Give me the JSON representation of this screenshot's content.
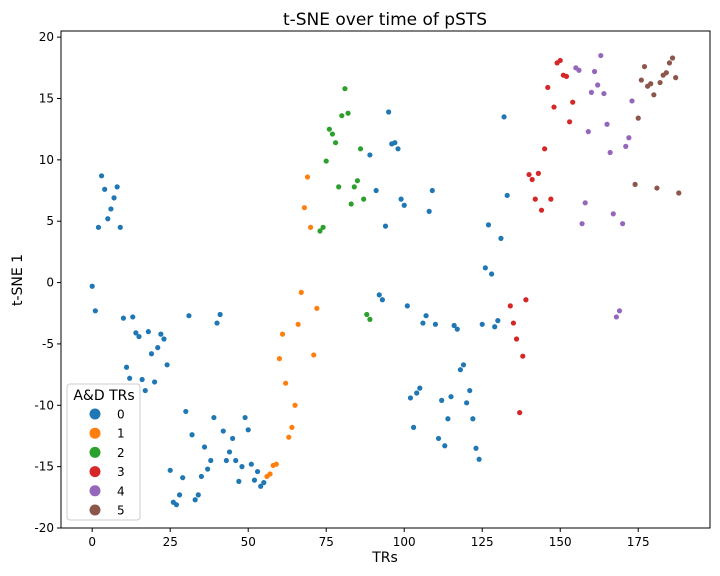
{
  "chart_data": {
    "type": "scatter",
    "title": "t-SNE over time of pSTS",
    "xlabel": "TRs",
    "ylabel": "t-SNE 1",
    "xlim": [
      -10,
      198
    ],
    "ylim": [
      -20,
      20.5
    ],
    "xticks": [
      0,
      25,
      50,
      75,
      100,
      125,
      150,
      175
    ],
    "yticks": [
      -20,
      -15,
      -10,
      -5,
      0,
      5,
      10,
      15,
      20
    ],
    "grid": false,
    "legend": {
      "title": "A&D TRs",
      "placement": "lower-left",
      "entries": [
        "0",
        "1",
        "2",
        "3",
        "4",
        "5"
      ]
    },
    "colors": [
      "#1f77b4",
      "#ff7f0e",
      "#2ca02c",
      "#d62728",
      "#9467bd",
      "#8c564b"
    ],
    "series": [
      {
        "name": "0",
        "color": "#1f77b4",
        "points": [
          [
            0,
            -0.3
          ],
          [
            1,
            -2.3
          ],
          [
            2,
            4.5
          ],
          [
            3,
            8.7
          ],
          [
            4,
            7.6
          ],
          [
            5,
            5.2
          ],
          [
            6,
            6.0
          ],
          [
            7,
            6.9
          ],
          [
            8,
            7.8
          ],
          [
            9,
            4.5
          ],
          [
            10,
            -2.9
          ],
          [
            11,
            -6.9
          ],
          [
            12,
            -7.8
          ],
          [
            13,
            -2.8
          ],
          [
            14,
            -4.1
          ],
          [
            15,
            -4.4
          ],
          [
            16,
            -7.9
          ],
          [
            17,
            -8.8
          ],
          [
            18,
            -4.0
          ],
          [
            19,
            -5.8
          ],
          [
            20,
            -8.1
          ],
          [
            21,
            -5.3
          ],
          [
            22,
            -4.2
          ],
          [
            23,
            -4.6
          ],
          [
            24,
            -6.7
          ],
          [
            25,
            -15.3
          ],
          [
            26,
            -17.9
          ],
          [
            27,
            -18.1
          ],
          [
            28,
            -17.3
          ],
          [
            29,
            -15.9
          ],
          [
            30,
            -10.5
          ],
          [
            31,
            -2.7
          ],
          [
            32,
            -12.4
          ],
          [
            33,
            -17.7
          ],
          [
            34,
            -17.3
          ],
          [
            35,
            -15.8
          ],
          [
            36,
            -13.4
          ],
          [
            37,
            -15.2
          ],
          [
            38,
            -14.5
          ],
          [
            39,
            -11.0
          ],
          [
            40,
            -3.3
          ],
          [
            41,
            -2.6
          ],
          [
            42,
            -12.1
          ],
          [
            43,
            -14.5
          ],
          [
            44,
            -13.8
          ],
          [
            45,
            -12.7
          ],
          [
            46,
            -14.5
          ],
          [
            47,
            -16.2
          ],
          [
            48,
            -15.0
          ],
          [
            49,
            -11.0
          ],
          [
            50,
            -12.0
          ],
          [
            51,
            -14.8
          ],
          [
            52,
            -16.1
          ],
          [
            53,
            -15.4
          ],
          [
            54,
            -16.6
          ],
          [
            55,
            -16.3
          ],
          [
            89,
            10.4
          ],
          [
            91,
            7.5
          ],
          [
            92,
            -1.0
          ],
          [
            93,
            -1.4
          ],
          [
            94,
            4.6
          ],
          [
            95,
            13.9
          ],
          [
            96,
            11.3
          ],
          [
            97,
            11.4
          ],
          [
            98,
            10.9
          ],
          [
            99,
            6.8
          ],
          [
            100,
            6.3
          ],
          [
            101,
            -1.9
          ],
          [
            102,
            -9.4
          ],
          [
            103,
            -11.8
          ],
          [
            104,
            -9.0
          ],
          [
            105,
            -8.6
          ],
          [
            106,
            -3.3
          ],
          [
            107,
            -2.7
          ],
          [
            108,
            5.8
          ],
          [
            109,
            7.5
          ],
          [
            110,
            -3.4
          ],
          [
            111,
            -12.7
          ],
          [
            112,
            -9.6
          ],
          [
            113,
            -13.3
          ],
          [
            114,
            -11.1
          ],
          [
            115,
            -9.3
          ],
          [
            116,
            -3.5
          ],
          [
            117,
            -3.8
          ],
          [
            118,
            -7.1
          ],
          [
            119,
            -6.7
          ],
          [
            120,
            -9.8
          ],
          [
            121,
            -8.8
          ],
          [
            122,
            -11.1
          ],
          [
            123,
            -13.5
          ],
          [
            124,
            -14.4
          ],
          [
            125,
            -3.4
          ],
          [
            126,
            1.2
          ],
          [
            127,
            4.7
          ],
          [
            128,
            0.7
          ],
          [
            129,
            -3.6
          ],
          [
            130,
            -3.1
          ],
          [
            131,
            3.6
          ],
          [
            132,
            13.5
          ],
          [
            133,
            7.1
          ]
        ]
      },
      {
        "name": "1",
        "color": "#ff7f0e",
        "points": [
          [
            56,
            -15.8
          ],
          [
            57,
            -15.6
          ],
          [
            58,
            -14.9
          ],
          [
            59,
            -14.8
          ],
          [
            60,
            -6.2
          ],
          [
            61,
            -4.2
          ],
          [
            62,
            -8.2
          ],
          [
            63,
            -12.6
          ],
          [
            64,
            -11.8
          ],
          [
            65,
            -10.0
          ],
          [
            66,
            -3.4
          ],
          [
            67,
            -0.8
          ],
          [
            68,
            6.1
          ],
          [
            69,
            8.6
          ],
          [
            70,
            4.5
          ],
          [
            71,
            -5.9
          ],
          [
            72,
            -2.1
          ]
        ]
      },
      {
        "name": "2",
        "color": "#2ca02c",
        "points": [
          [
            73,
            4.2
          ],
          [
            74,
            4.5
          ],
          [
            75,
            9.9
          ],
          [
            76,
            12.5
          ],
          [
            77,
            12.1
          ],
          [
            78,
            11.4
          ],
          [
            79,
            7.8
          ],
          [
            80,
            13.6
          ],
          [
            81,
            15.8
          ],
          [
            82,
            13.8
          ],
          [
            83,
            6.4
          ],
          [
            84,
            7.8
          ],
          [
            85,
            8.3
          ],
          [
            86,
            10.9
          ],
          [
            87,
            6.8
          ],
          [
            88,
            -2.6
          ],
          [
            89,
            -3.0
          ]
        ]
      },
      {
        "name": "3",
        "color": "#d62728",
        "points": [
          [
            134,
            -1.9
          ],
          [
            135,
            -3.3
          ],
          [
            136,
            -4.6
          ],
          [
            137,
            -10.6
          ],
          [
            138,
            -6.0
          ],
          [
            139,
            -1.4
          ],
          [
            140,
            8.8
          ],
          [
            141,
            8.4
          ],
          [
            142,
            6.8
          ],
          [
            143,
            8.9
          ],
          [
            144,
            5.9
          ],
          [
            145,
            10.9
          ],
          [
            146,
            15.9
          ],
          [
            147,
            6.8
          ],
          [
            148,
            14.3
          ],
          [
            149,
            17.9
          ],
          [
            150,
            18.1
          ],
          [
            151,
            16.9
          ],
          [
            152,
            16.8
          ],
          [
            153,
            13.1
          ],
          [
            154,
            14.7
          ]
        ]
      },
      {
        "name": "4",
        "color": "#9467bd",
        "points": [
          [
            155,
            17.5
          ],
          [
            156,
            17.3
          ],
          [
            157,
            4.8
          ],
          [
            158,
            6.5
          ],
          [
            159,
            12.3
          ],
          [
            160,
            15.5
          ],
          [
            161,
            17.2
          ],
          [
            162,
            16.1
          ],
          [
            163,
            18.5
          ],
          [
            164,
            15.4
          ],
          [
            165,
            12.9
          ],
          [
            166,
            10.6
          ],
          [
            167,
            5.6
          ],
          [
            168,
            -2.8
          ],
          [
            169,
            -2.3
          ],
          [
            170,
            4.8
          ],
          [
            171,
            11.1
          ],
          [
            172,
            11.8
          ],
          [
            173,
            14.8
          ]
        ]
      },
      {
        "name": "5",
        "color": "#8c564b",
        "points": [
          [
            174,
            8.0
          ],
          [
            175,
            13.4
          ],
          [
            176,
            16.5
          ],
          [
            177,
            17.6
          ],
          [
            178,
            16.0
          ],
          [
            179,
            16.2
          ],
          [
            180,
            15.3
          ],
          [
            181,
            7.7
          ],
          [
            182,
            16.3
          ],
          [
            183,
            16.9
          ],
          [
            184,
            17.1
          ],
          [
            185,
            17.9
          ],
          [
            186,
            18.3
          ],
          [
            187,
            16.7
          ],
          [
            188,
            7.3
          ]
        ]
      }
    ]
  }
}
